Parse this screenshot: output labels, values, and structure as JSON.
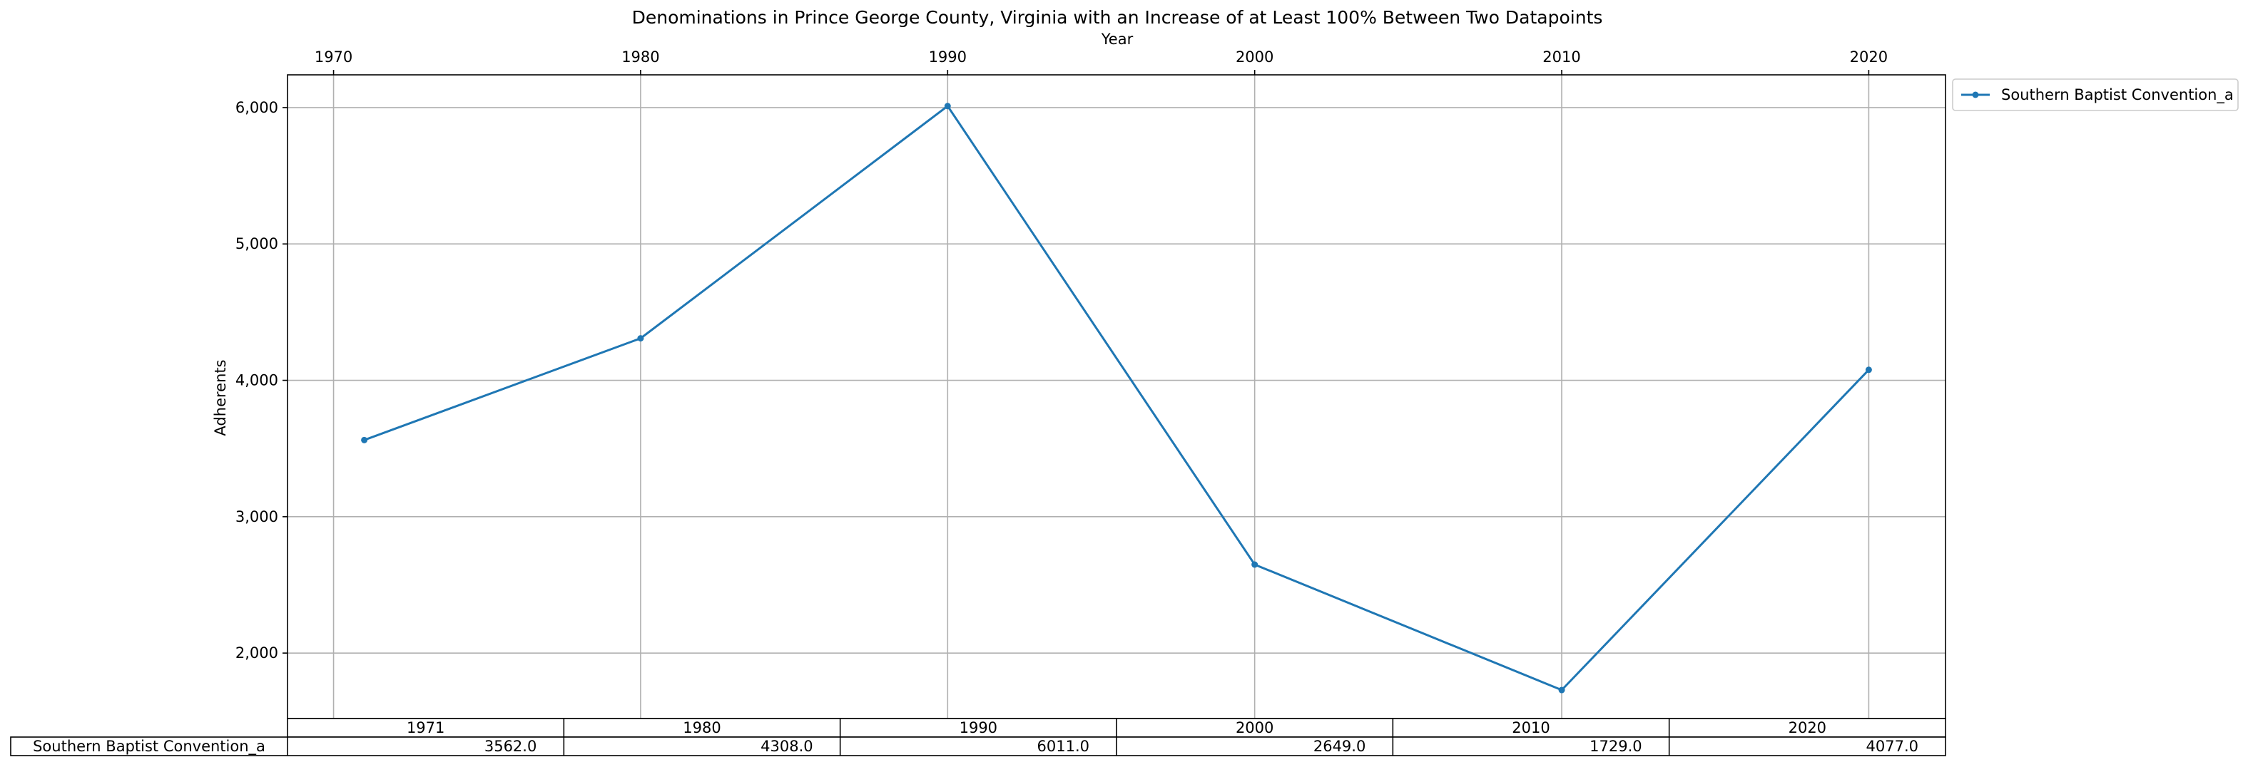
{
  "chart_data": {
    "type": "line",
    "title": "Denominations in Prince George County, Virginia with an Increase of at Least 100% Between Two Datapoints",
    "xlabel": "Year",
    "ylabel": "Adherents",
    "x_ticks": [
      "1970",
      "1980",
      "1990",
      "2000",
      "2010",
      "2020"
    ],
    "y_ticks": [
      "2,000",
      "3,000",
      "4,000",
      "5,000",
      "6,000"
    ],
    "xlim": [
      1968.5,
      2022.5
    ],
    "ylim": [
      1520,
      6240
    ],
    "grid": true,
    "legend_position": "upper-right-outside",
    "x": [
      1971,
      1980,
      1990,
      2000,
      2010,
      2020
    ],
    "series": [
      {
        "name": "Southern Baptist Convention_a",
        "color": "#1f77b4",
        "values": [
          3562,
          4308,
          6011,
          2649,
          1729,
          4077
        ]
      }
    ],
    "table": {
      "col_labels": [
        "1971",
        "1980",
        "1990",
        "2000",
        "2010",
        "2020"
      ],
      "rows": [
        {
          "label": "Southern Baptist Convention_a",
          "cells": [
            "3562.0",
            "4308.0",
            "6011.0",
            "2649.0",
            "1729.0",
            "4077.0"
          ]
        }
      ]
    }
  }
}
